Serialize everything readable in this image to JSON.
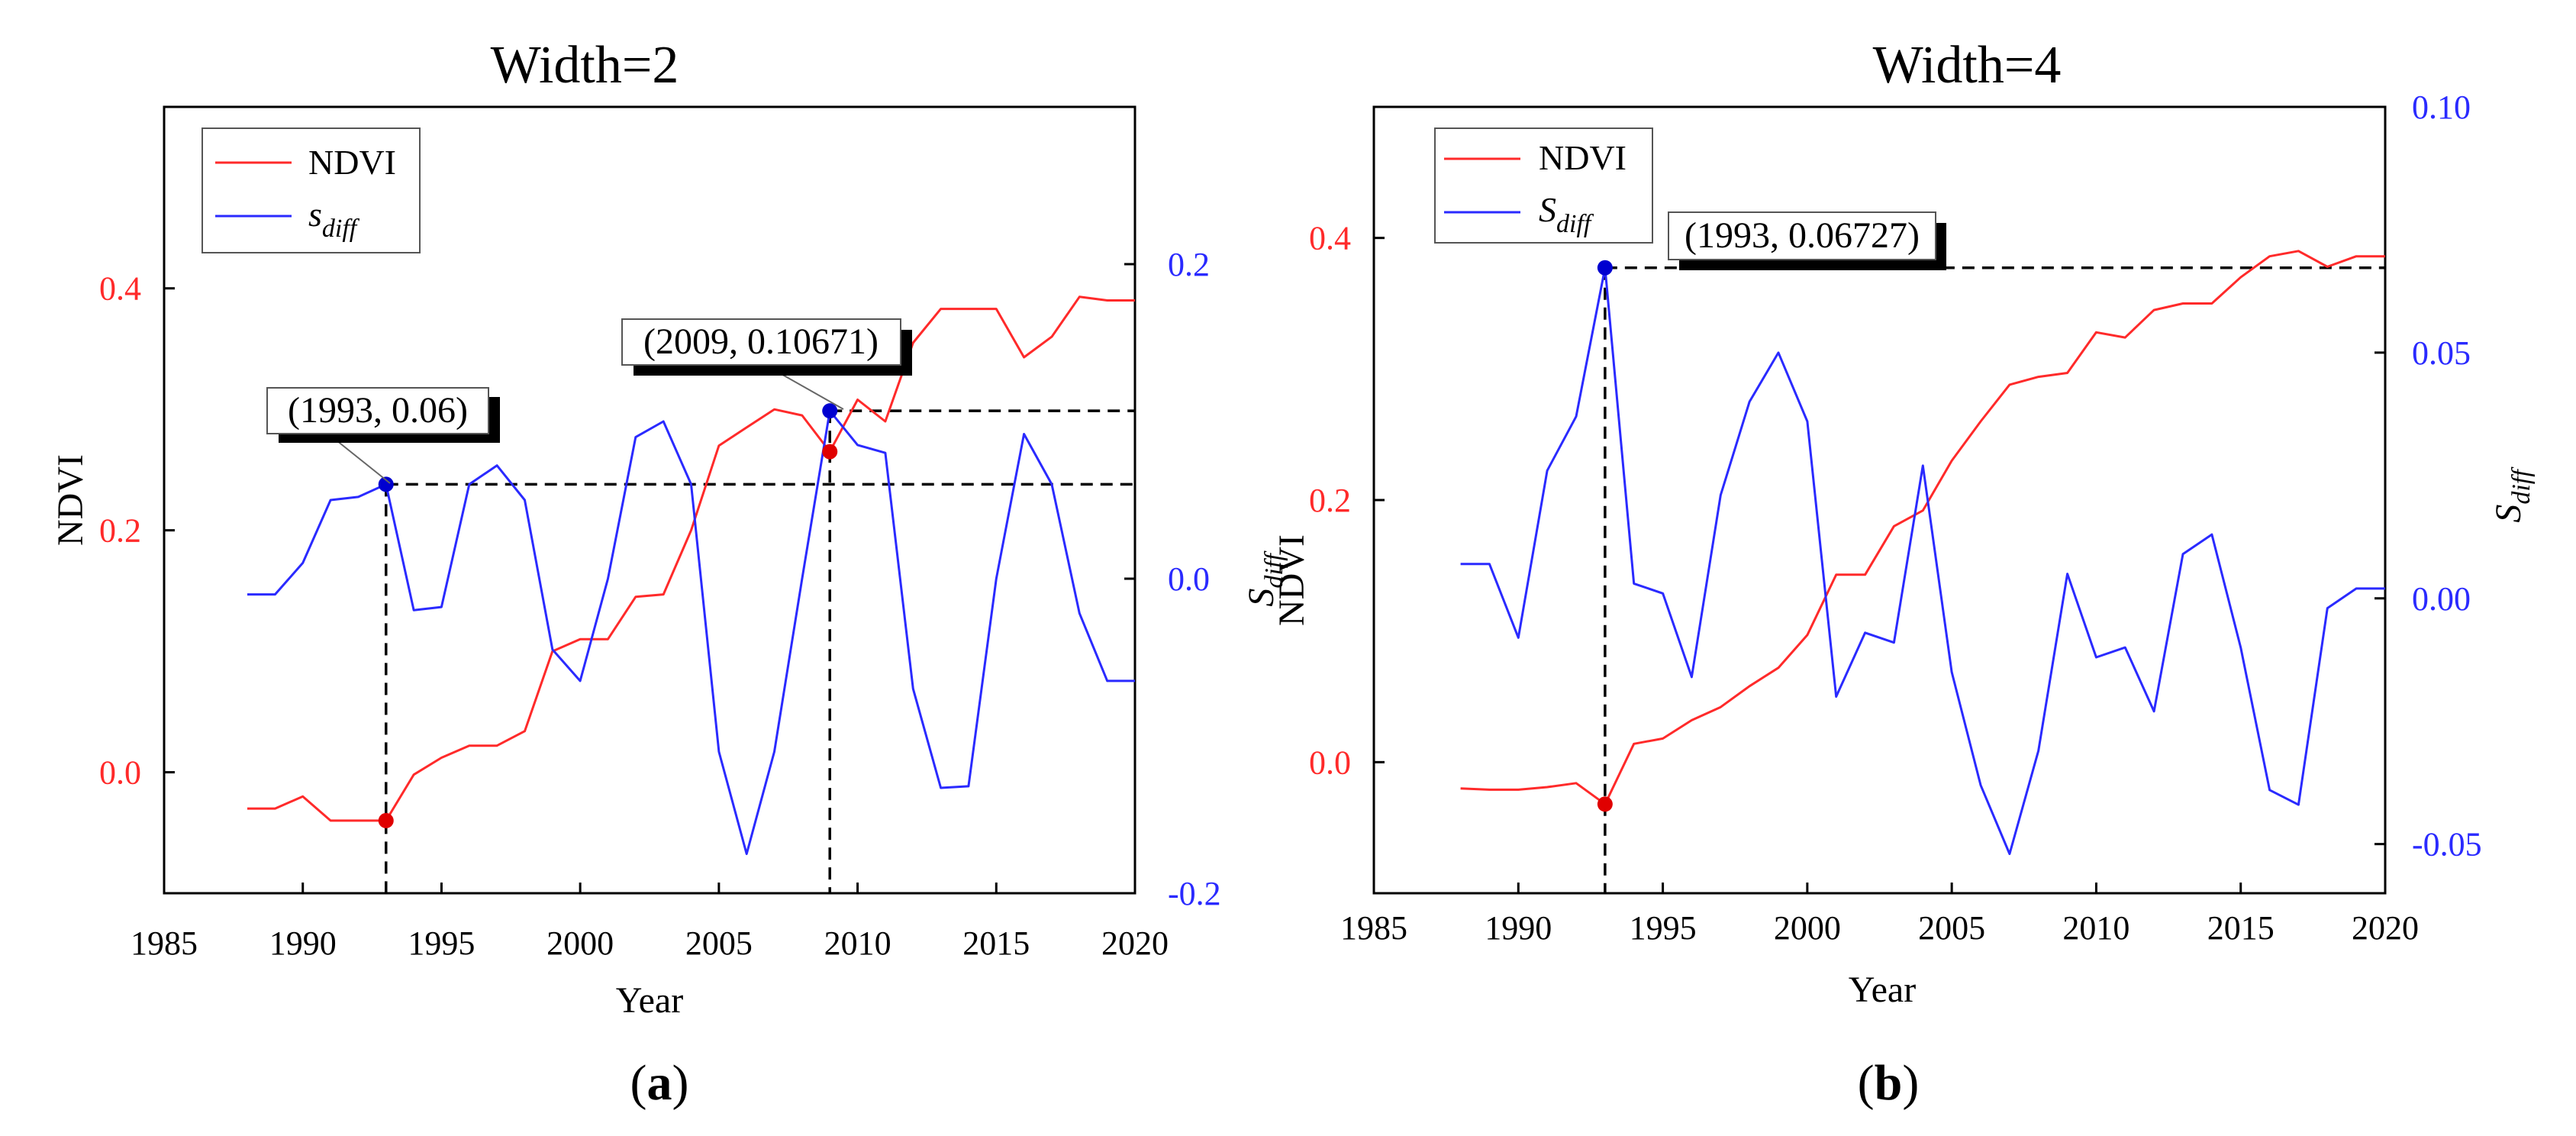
{
  "chart_data": [
    {
      "type": "line",
      "panel_label": "(a)",
      "title": "Width=2",
      "xlabel": "Year",
      "ylabel_left": "NDVI",
      "ylabel_right": "",
      "xlim": [
        1985,
        2020
      ],
      "ylim_left": [
        -0.1,
        0.55
      ],
      "ylim_right": [
        -0.2,
        0.3
      ],
      "xticks": [
        1985,
        1990,
        1995,
        2000,
        2005,
        2010,
        2015,
        2020
      ],
      "yticks_left": [
        "0.0",
        "0.2",
        "0.4"
      ],
      "yticks_left_values": [
        0.0,
        0.2,
        0.4
      ],
      "yticks_right": [
        "-0.2",
        "0.0",
        "0.2"
      ],
      "yticks_right_values": [
        -0.2,
        0.0,
        0.2
      ],
      "colors": {
        "ndvi": "#ff2a2a",
        "sdiff": "#2a2aff",
        "marker_ndvi": "#e00000",
        "marker_sdiff": "#0000d0"
      },
      "legend": [
        {
          "label": "NDVI",
          "sub": ""
        },
        {
          "label": "s",
          "sub": "diff"
        }
      ],
      "x": [
        1988,
        1989,
        1990,
        1991,
        1992,
        1993,
        1994,
        1995,
        1996,
        1997,
        1998,
        1999,
        2000,
        2001,
        2002,
        2003,
        2004,
        2005,
        2006,
        2007,
        2008,
        2009,
        2010,
        2011,
        2012,
        2013,
        2014,
        2015,
        2016,
        2017,
        2018,
        2019,
        2020
      ],
      "series": [
        {
          "name": "NDVI",
          "axis": "left",
          "values": [
            -0.03,
            -0.03,
            -0.02,
            -0.04,
            -0.04,
            -0.04,
            -0.002,
            0.012,
            0.022,
            0.022,
            0.034,
            0.1,
            0.11,
            0.11,
            0.145,
            0.147,
            0.2,
            0.27,
            0.285,
            0.3,
            0.295,
            0.265,
            0.308,
            0.29,
            0.355,
            0.383,
            0.383,
            0.383,
            0.343,
            0.36,
            0.393,
            0.39,
            0.39
          ]
        },
        {
          "name": "s_diff",
          "axis": "right",
          "values": [
            -0.01,
            -0.01,
            0.01,
            0.05,
            0.052,
            0.06,
            -0.02,
            -0.018,
            0.06,
            0.072,
            0.05,
            -0.045,
            -0.065,
            0.0,
            0.09,
            0.1,
            0.06,
            -0.11,
            -0.175,
            -0.11,
            0.0,
            0.10671,
            0.085,
            0.08,
            -0.07,
            -0.133,
            -0.132,
            0.0,
            0.092,
            0.06,
            -0.022,
            -0.065,
            -0.065
          ]
        }
      ],
      "annotations": [
        {
          "text": "(1993, 0.06)",
          "x": 1993,
          "y_right": 0.06,
          "ndvi_at_x": -0.04
        },
        {
          "text": "(2009, 0.10671)",
          "x": 2009,
          "y_right": 0.10671,
          "ndvi_at_x": 0.265
        }
      ]
    },
    {
      "type": "line",
      "panel_label": "(b)",
      "title": "Width=4",
      "xlabel": "Year",
      "ylabel_left": "NDVI",
      "ylabel_left_extra": "S_diff",
      "ylabel_right": "S_diff",
      "xlim": [
        1985,
        2020
      ],
      "ylim_left": [
        -0.1,
        0.5
      ],
      "ylim_right": [
        -0.06,
        0.1
      ],
      "xticks": [
        1985,
        1990,
        1995,
        2000,
        2005,
        2010,
        2015,
        2020
      ],
      "yticks_left": [
        "0.0",
        "0.2",
        "0.4"
      ],
      "yticks_left_values": [
        0.0,
        0.2,
        0.4
      ],
      "yticks_right": [
        "-0.05",
        "0.00",
        "0.05",
        "0.10"
      ],
      "yticks_right_values": [
        -0.05,
        0.0,
        0.05,
        0.1
      ],
      "colors": {
        "ndvi": "#ff2a2a",
        "sdiff": "#2a2aff",
        "marker_ndvi": "#e00000",
        "marker_sdiff": "#0000d0"
      },
      "legend": [
        {
          "label": "NDVI",
          "sub": ""
        },
        {
          "label": "S",
          "sub": "diff"
        }
      ],
      "x": [
        1988,
        1989,
        1990,
        1991,
        1992,
        1993,
        1994,
        1995,
        1996,
        1997,
        1998,
        1999,
        2000,
        2001,
        2002,
        2003,
        2004,
        2005,
        2006,
        2007,
        2008,
        2009,
        2010,
        2011,
        2012,
        2013,
        2014,
        2015,
        2016,
        2017,
        2018,
        2019,
        2020
      ],
      "series": [
        {
          "name": "NDVI",
          "axis": "left",
          "values": [
            -0.02,
            -0.021,
            -0.021,
            -0.019,
            -0.016,
            -0.032,
            0.014,
            0.018,
            0.032,
            0.042,
            0.058,
            0.072,
            0.097,
            0.143,
            0.143,
            0.18,
            0.192,
            0.23,
            0.26,
            0.288,
            0.294,
            0.297,
            0.328,
            0.324,
            0.345,
            0.35,
            0.35,
            0.37,
            0.386,
            0.39,
            0.378,
            0.386,
            0.386
          ]
        },
        {
          "name": "S_diff",
          "axis": "right",
          "values": [
            0.007,
            0.007,
            -0.008,
            0.026,
            0.037,
            0.06727,
            0.003,
            0.001,
            -0.016,
            0.021,
            0.04,
            0.05,
            0.036,
            -0.02,
            -0.007,
            -0.009,
            0.027,
            -0.015,
            -0.038,
            -0.052,
            -0.031,
            0.005,
            -0.012,
            -0.01,
            -0.023,
            0.009,
            0.013,
            -0.01,
            -0.039,
            -0.042,
            -0.002,
            0.002,
            0.002
          ]
        }
      ],
      "annotations": [
        {
          "text": "(1993, 0.06727)",
          "x": 1993,
          "y_right": 0.06727,
          "ndvi_at_x": -0.032
        }
      ]
    }
  ]
}
